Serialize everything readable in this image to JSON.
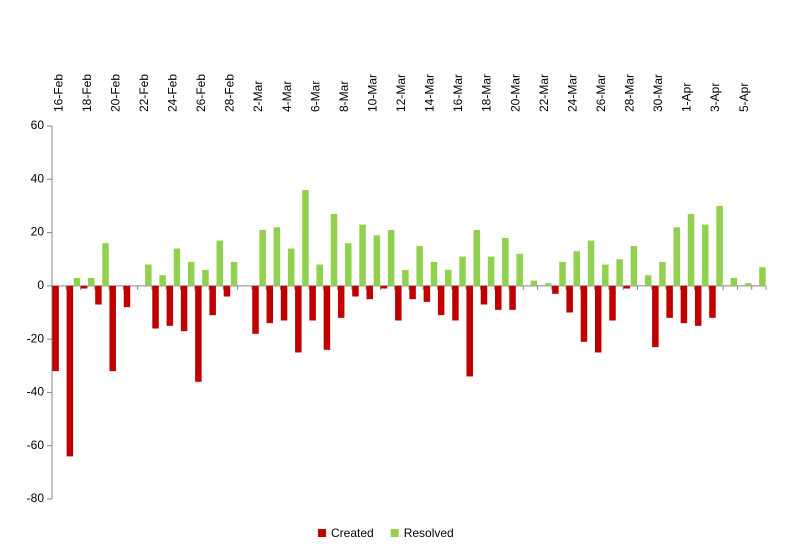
{
  "chart_data": {
    "type": "bar",
    "categories": [
      "16-Feb",
      null,
      "18-Feb",
      null,
      "20-Feb",
      null,
      "22-Feb",
      null,
      "24-Feb",
      null,
      "26-Feb",
      null,
      "28-Feb",
      null,
      "2-Mar",
      null,
      "4-Mar",
      null,
      "6-Mar",
      null,
      "8-Mar",
      null,
      "10-Mar",
      null,
      "12-Mar",
      null,
      "14-Mar",
      null,
      "16-Mar",
      null,
      "18-Mar",
      null,
      "20-Mar",
      null,
      "22-Mar",
      null,
      "24-Mar",
      null,
      "26-Mar",
      null,
      "28-Mar",
      null,
      "30-Mar",
      null,
      "1-Apr",
      null,
      "3-Apr",
      null,
      "5-Apr",
      null
    ],
    "series": [
      {
        "name": "Created",
        "color": "#c00000",
        "values": [
          -32,
          -64,
          -1,
          -7,
          -32,
          -8,
          0,
          -16,
          -15,
          -17,
          -36,
          -11,
          -4,
          0,
          -18,
          -14,
          -13,
          -25,
          -13,
          -24,
          -12,
          -4,
          -5,
          -1,
          -13,
          -5,
          -6,
          -11,
          -13,
          -34,
          -7,
          -9,
          -9,
          0,
          0,
          -3,
          -10,
          -21,
          -25,
          -13,
          -1,
          0,
          -23,
          -12,
          -14,
          -15,
          -12,
          0,
          0,
          0
        ]
      },
      {
        "name": "Resolved",
        "color": "#92d050",
        "values": [
          0,
          3,
          3,
          16,
          0,
          0,
          8,
          4,
          14,
          9,
          6,
          17,
          9,
          0,
          21,
          22,
          14,
          36,
          8,
          27,
          16,
          23,
          19,
          21,
          6,
          15,
          9,
          6,
          11,
          21,
          11,
          18,
          12,
          2,
          1,
          9,
          13,
          17,
          8,
          10,
          15,
          4,
          9,
          22,
          27,
          23,
          30,
          3,
          1,
          7
        ]
      }
    ],
    "ylim": [
      -80,
      60
    ],
    "yticks": [
      -80,
      -60,
      -40,
      -20,
      0,
      20,
      40,
      60
    ],
    "legend": "bottom"
  }
}
